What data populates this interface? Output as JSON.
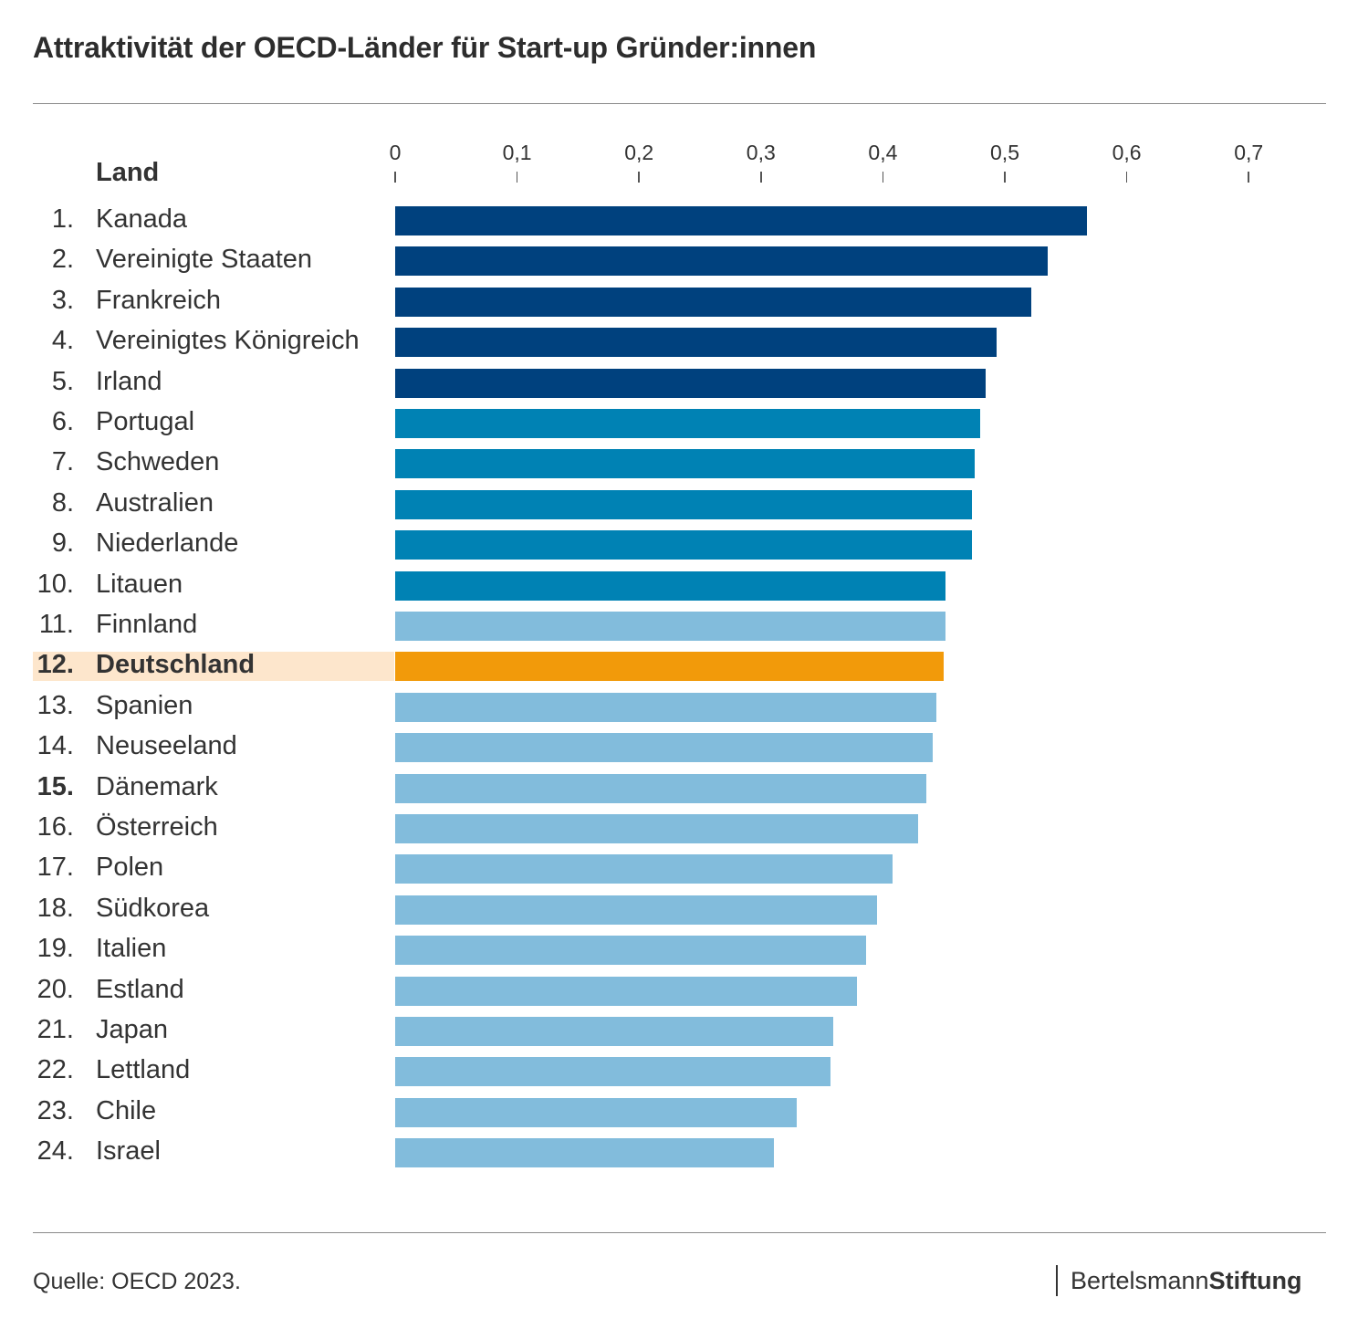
{
  "title": "Attraktivität der OECD-Länder für Start-up Gründer:innen",
  "source": "Quelle: OECD 2023.",
  "logo": {
    "part1": "Bertelsmann",
    "part2": "Stiftung"
  },
  "colors": {
    "top5": "#00417e",
    "rank6_10": "#0082b4",
    "rest": "#82bcdc",
    "highlight": "#f29a0a",
    "highlight_row": "#fde6cc"
  },
  "chart_data": {
    "type": "bar",
    "orientation": "horizontal",
    "title": "Attraktivität der OECD-Länder für Start-up Gründer:innen",
    "column_header": "Land",
    "xlabel": "",
    "ylabel": "Land",
    "xlim": [
      0,
      0.7
    ],
    "x_ticks": [
      "0",
      "0,1",
      "0,2",
      "0,3",
      "0,4",
      "0,5",
      "0,6",
      "0,7"
    ],
    "grid": false,
    "highlighted": "Deutschland",
    "rows": [
      {
        "rank": "1.",
        "country": "Kanada",
        "value": 0.567,
        "group": "top5"
      },
      {
        "rank": "2.",
        "country": "Vereinigte Staaten",
        "value": 0.535,
        "group": "top5"
      },
      {
        "rank": "3.",
        "country": "Frankreich",
        "value": 0.522,
        "group": "top5"
      },
      {
        "rank": "4.",
        "country": "Vereinigtes Königreich",
        "value": 0.493,
        "group": "top5"
      },
      {
        "rank": "5.",
        "country": "Irland",
        "value": 0.484,
        "group": "top5"
      },
      {
        "rank": "6.",
        "country": "Portugal",
        "value": 0.48,
        "group": "rank6_10"
      },
      {
        "rank": "7.",
        "country": "Schweden",
        "value": 0.475,
        "group": "rank6_10"
      },
      {
        "rank": "8.",
        "country": "Australien",
        "value": 0.473,
        "group": "rank6_10"
      },
      {
        "rank": "9.",
        "country": "Niederlande",
        "value": 0.473,
        "group": "rank6_10"
      },
      {
        "rank": "10.",
        "country": "Litauen",
        "value": 0.451,
        "group": "rank6_10"
      },
      {
        "rank": "11.",
        "country": "Finnland",
        "value": 0.451,
        "group": "rest"
      },
      {
        "rank": "12.",
        "country": "Deutschland",
        "value": 0.45,
        "group": "highlight"
      },
      {
        "rank": "13.",
        "country": "Spanien",
        "value": 0.444,
        "group": "rest"
      },
      {
        "rank": "14.",
        "country": "Neuseeland",
        "value": 0.441,
        "group": "rest"
      },
      {
        "rank": "15.",
        "country": "Dänemark",
        "value": 0.436,
        "group": "rest",
        "rank_bold": true
      },
      {
        "rank": "16.",
        "country": "Österreich",
        "value": 0.429,
        "group": "rest"
      },
      {
        "rank": "17.",
        "country": "Polen",
        "value": 0.408,
        "group": "rest"
      },
      {
        "rank": "18.",
        "country": "Südkorea",
        "value": 0.395,
        "group": "rest"
      },
      {
        "rank": "19.",
        "country": "Italien",
        "value": 0.386,
        "group": "rest"
      },
      {
        "rank": "20.",
        "country": "Estland",
        "value": 0.379,
        "group": "rest"
      },
      {
        "rank": "21.",
        "country": "Japan",
        "value": 0.359,
        "group": "rest"
      },
      {
        "rank": "22.",
        "country": "Lettland",
        "value": 0.357,
        "group": "rest"
      },
      {
        "rank": "23.",
        "country": "Chile",
        "value": 0.329,
        "group": "rest"
      },
      {
        "rank": "24.",
        "country": "Israel",
        "value": 0.311,
        "group": "rest"
      }
    ]
  }
}
